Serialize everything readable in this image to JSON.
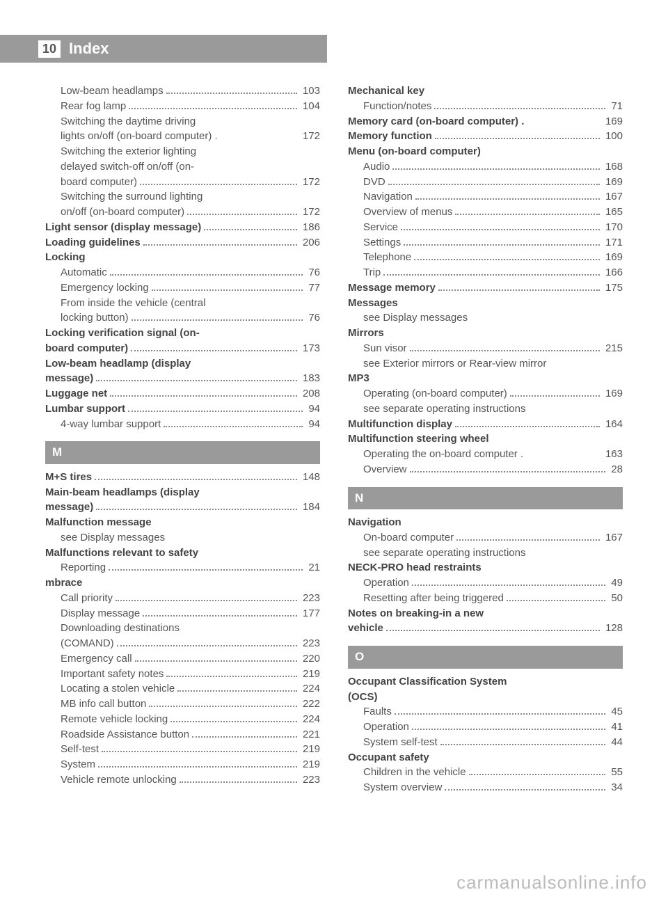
{
  "header": {
    "page_number": "10",
    "title": "Index"
  },
  "watermark": "carmanualsonline.info",
  "sections": {
    "M": "M",
    "N": "N",
    "O": "O"
  },
  "left": [
    {
      "t": "Low-beam headlamps",
      "p": "103",
      "sub": true
    },
    {
      "t": "Rear fog lamp",
      "p": "104",
      "sub": true
    },
    {
      "t": "Switching the daytime driving",
      "sub": true,
      "nowrap": true
    },
    {
      "t": "lights on/off (on-board computer) .",
      "p": "172",
      "sub": true,
      "nodots": true
    },
    {
      "t": "Switching the exterior lighting",
      "sub": true,
      "nowrap": true
    },
    {
      "t": "delayed switch-off on/off (on-",
      "sub": true,
      "nowrap": true
    },
    {
      "t": "board computer)",
      "p": "172",
      "sub": true
    },
    {
      "t": "Switching the surround lighting",
      "sub": true,
      "nowrap": true
    },
    {
      "t": "on/off (on-board computer)",
      "p": "172",
      "sub": true
    },
    {
      "t": "Light sensor (display message)",
      "p": "186",
      "bold": true
    },
    {
      "t": "Loading guidelines",
      "p": "206",
      "bold": true
    },
    {
      "t": "Locking",
      "bold": true,
      "nowrap": true
    },
    {
      "t": "Automatic",
      "p": "76",
      "sub": true
    },
    {
      "t": "Emergency locking",
      "p": "77",
      "sub": true
    },
    {
      "t": "From inside the vehicle (central",
      "sub": true,
      "nowrap": true
    },
    {
      "t": "locking button)",
      "p": "76",
      "sub": true
    },
    {
      "t": "Locking verification signal (on-",
      "bold": true,
      "nowrap": true
    },
    {
      "t": "board computer)",
      "p": "173",
      "bold": true
    },
    {
      "t": "Low-beam headlamp (display",
      "bold": true,
      "nowrap": true
    },
    {
      "t": "message)",
      "p": "183",
      "bold": true
    },
    {
      "t": "Luggage net",
      "p": "208",
      "bold": true
    },
    {
      "t": "Lumbar support",
      "p": "94",
      "bold": true
    },
    {
      "t": "4-way lumbar support",
      "p": "94",
      "sub": true
    },
    {
      "section": "M"
    },
    {
      "t": "M+S tires",
      "p": "148",
      "bold": true
    },
    {
      "t": "Main-beam headlamps (display",
      "bold": true,
      "nowrap": true
    },
    {
      "t": "message)",
      "p": "184",
      "bold": true
    },
    {
      "t": "Malfunction message",
      "bold": true,
      "nowrap": true
    },
    {
      "t": "see Display messages",
      "sub": true,
      "nowrap": true
    },
    {
      "t": "Malfunctions relevant to safety",
      "bold": true,
      "nowrap": true
    },
    {
      "t": "Reporting",
      "p": "21",
      "sub": true
    },
    {
      "t": "mbrace",
      "bold": true,
      "nowrap": true
    },
    {
      "t": "Call priority",
      "p": "223",
      "sub": true
    },
    {
      "t": "Display message",
      "p": "177",
      "sub": true
    },
    {
      "t": "Downloading destinations",
      "sub": true,
      "nowrap": true
    },
    {
      "t": "(COMAND)",
      "p": "223",
      "sub": true
    },
    {
      "t": "Emergency call",
      "p": "220",
      "sub": true
    },
    {
      "t": "Important safety notes",
      "p": "219",
      "sub": true
    },
    {
      "t": "Locating a stolen vehicle",
      "p": "224",
      "sub": true
    },
    {
      "t": "MB info call button",
      "p": "222",
      "sub": true
    },
    {
      "t": "Remote vehicle locking",
      "p": "224",
      "sub": true
    },
    {
      "t": "Roadside Assistance button",
      "p": "221",
      "sub": true
    },
    {
      "t": "Self-test",
      "p": "219",
      "sub": true
    },
    {
      "t": "System",
      "p": "219",
      "sub": true
    },
    {
      "t": "Vehicle remote unlocking",
      "p": "223",
      "sub": true
    }
  ],
  "right": [
    {
      "t": "Mechanical key",
      "bold": true,
      "nowrap": true
    },
    {
      "t": "Function/notes",
      "p": "71",
      "sub": true
    },
    {
      "t": "Memory card (on-board computer) .",
      "p": "169",
      "bold": true,
      "nodots": true
    },
    {
      "t": "Memory function",
      "p": "100",
      "bold": true
    },
    {
      "t": "Menu (on-board computer)",
      "bold": true,
      "nowrap": true
    },
    {
      "t": "Audio",
      "p": "168",
      "sub": true
    },
    {
      "t": "DVD",
      "p": "169",
      "sub": true
    },
    {
      "t": "Navigation",
      "p": "167",
      "sub": true
    },
    {
      "t": "Overview of menus",
      "p": "165",
      "sub": true
    },
    {
      "t": "Service",
      "p": "170",
      "sub": true
    },
    {
      "t": "Settings",
      "p": "171",
      "sub": true
    },
    {
      "t": "Telephone",
      "p": "169",
      "sub": true
    },
    {
      "t": "Trip",
      "p": "166",
      "sub": true
    },
    {
      "t": "Message memory",
      "p": "175",
      "bold": true
    },
    {
      "t": "Messages",
      "bold": true,
      "nowrap": true
    },
    {
      "t": "see Display messages",
      "sub": true,
      "nowrap": true
    },
    {
      "t": "Mirrors",
      "bold": true,
      "nowrap": true
    },
    {
      "t": "Sun visor",
      "p": "215",
      "sub": true
    },
    {
      "t": "see Exterior mirrors or Rear-view mirror",
      "sub": true,
      "nowrap": true
    },
    {
      "t": "MP3",
      "bold": true,
      "nowrap": true
    },
    {
      "t": "Operating (on-board computer)",
      "p": "169",
      "sub": true
    },
    {
      "t": "see separate operating instructions",
      "sub": true,
      "nowrap": true
    },
    {
      "t": "Multifunction display",
      "p": "164",
      "bold": true
    },
    {
      "t": "Multifunction steering wheel",
      "bold": true,
      "nowrap": true
    },
    {
      "t": "Operating the on-board computer .",
      "p": "163",
      "sub": true,
      "nodots": true
    },
    {
      "t": "Overview",
      "p": "28",
      "sub": true
    },
    {
      "section": "N"
    },
    {
      "t": "Navigation",
      "bold": true,
      "nowrap": true
    },
    {
      "t": "On-board computer",
      "p": "167",
      "sub": true
    },
    {
      "t": "see separate operating instructions",
      "sub": true,
      "nowrap": true
    },
    {
      "t": "NECK-PRO head restraints",
      "bold": true,
      "nowrap": true
    },
    {
      "t": "Operation",
      "p": "49",
      "sub": true
    },
    {
      "t": "Resetting after being triggered",
      "p": "50",
      "sub": true
    },
    {
      "t": "Notes on breaking-in a new",
      "bold": true,
      "nowrap": true
    },
    {
      "t": "vehicle",
      "p": "128",
      "bold": true
    },
    {
      "section": "O"
    },
    {
      "t": "Occupant Classification System",
      "bold": true,
      "nowrap": true
    },
    {
      "t": "(OCS)",
      "bold": true,
      "nowrap": true
    },
    {
      "t": "Faults",
      "p": "45",
      "sub": true
    },
    {
      "t": "Operation",
      "p": "41",
      "sub": true
    },
    {
      "t": "System self-test",
      "p": "44",
      "sub": true
    },
    {
      "t": "Occupant safety",
      "bold": true,
      "nowrap": true
    },
    {
      "t": "Children in the vehicle",
      "p": "55",
      "sub": true
    },
    {
      "t": "System overview",
      "p": "34",
      "sub": true
    }
  ]
}
